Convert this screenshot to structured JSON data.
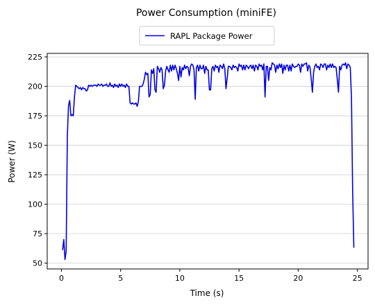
{
  "chart_data": {
    "type": "line",
    "title": "Power Consumption (miniFE)",
    "xlabel": "Time (s)",
    "ylabel": "Power (W)",
    "xlim": [
      -1.2,
      25.9
    ],
    "ylim": [
      45,
      228
    ],
    "xticks": [
      0,
      5,
      10,
      15,
      20,
      25
    ],
    "yticks": [
      50,
      75,
      100,
      125,
      150,
      175,
      200,
      225
    ],
    "grid": "horizontal",
    "legend_position": "top-center",
    "series": [
      {
        "name": "RAPL Package Power",
        "color": "#0000dd",
        "x": [
          0.1,
          0.2,
          0.3,
          0.4,
          0.5,
          0.6,
          0.7,
          0.8,
          0.9,
          1.0,
          1.1,
          1.2,
          1.3,
          1.4,
          1.5,
          1.6,
          1.7,
          1.8,
          1.9,
          2.0,
          2.1,
          2.2,
          2.3,
          2.4,
          2.5,
          2.6,
          2.7,
          2.8,
          2.9,
          3.0,
          3.1,
          3.2,
          3.3,
          3.4,
          3.5,
          3.6,
          3.7,
          3.8,
          3.9,
          4.0,
          4.1,
          4.2,
          4.3,
          4.4,
          4.5,
          4.6,
          4.7,
          4.8,
          4.9,
          5.0,
          5.1,
          5.2,
          5.3,
          5.4,
          5.5,
          5.6,
          5.7,
          5.8,
          5.9,
          6.0,
          6.1,
          6.2,
          6.3,
          6.4,
          6.5,
          6.6,
          6.7,
          6.8,
          6.9,
          7.0,
          7.1,
          7.2,
          7.3,
          7.4,
          7.5,
          7.6,
          7.7,
          7.8,
          7.9,
          8.0,
          8.1,
          8.2,
          8.3,
          8.4,
          8.5,
          8.6,
          8.7,
          8.8,
          8.9,
          9.0,
          9.1,
          9.2,
          9.3,
          9.4,
          9.5,
          9.6,
          9.7,
          9.8,
          9.9,
          10.0,
          10.1,
          10.2,
          10.3,
          10.4,
          10.5,
          10.6,
          10.7,
          10.8,
          10.9,
          11.0,
          11.1,
          11.2,
          11.3,
          11.4,
          11.5,
          11.6,
          11.7,
          11.8,
          11.9,
          12.0,
          12.1,
          12.2,
          12.3,
          12.4,
          12.5,
          12.6,
          12.7,
          12.8,
          12.9,
          13.0,
          13.1,
          13.2,
          13.3,
          13.4,
          13.5,
          13.6,
          13.7,
          13.8,
          13.9,
          14.0,
          14.1,
          14.2,
          14.3,
          14.4,
          14.5,
          14.6,
          14.7,
          14.8,
          14.9,
          15.0,
          15.1,
          15.2,
          15.3,
          15.4,
          15.5,
          15.6,
          15.7,
          15.8,
          15.9,
          16.0,
          16.1,
          16.2,
          16.3,
          16.4,
          16.5,
          16.6,
          16.7,
          16.8,
          16.9,
          17.0,
          17.1,
          17.2,
          17.3,
          17.4,
          17.5,
          17.6,
          17.7,
          17.8,
          17.9,
          18.0,
          18.1,
          18.2,
          18.3,
          18.4,
          18.5,
          18.6,
          18.7,
          18.8,
          18.9,
          19.0,
          19.1,
          19.2,
          19.3,
          19.4,
          19.5,
          19.6,
          19.7,
          19.8,
          19.9,
          20.0,
          20.1,
          20.2,
          20.3,
          20.4,
          20.5,
          20.6,
          20.7,
          20.8,
          20.9,
          21.0,
          21.1,
          21.2,
          21.3,
          21.4,
          21.5,
          21.6,
          21.7,
          21.8,
          21.9,
          22.0,
          22.1,
          22.2,
          22.3,
          22.4,
          22.5,
          22.6,
          22.7,
          22.8,
          22.9,
          23.0,
          23.1,
          23.2,
          23.3,
          23.4,
          23.5,
          23.6,
          23.7,
          23.8,
          23.9,
          24.0,
          24.1,
          24.2,
          24.3,
          24.4,
          24.5,
          24.6,
          24.7
        ],
        "y": [
          61,
          70,
          53,
          60,
          158,
          184,
          188,
          175,
          176,
          175,
          191,
          201,
          200,
          199,
          198,
          199,
          197,
          199,
          198,
          198,
          196,
          197,
          201,
          200,
          201,
          200,
          201,
          201,
          201,
          200,
          202,
          201,
          201,
          202,
          200,
          201,
          201,
          202,
          200,
          200,
          203,
          200,
          201,
          199,
          202,
          200,
          201,
          199,
          202,
          200,
          202,
          200,
          201,
          199,
          202,
          200,
          200,
          186,
          185,
          186,
          185,
          185,
          186,
          183,
          187,
          200,
          200,
          200,
          202,
          206,
          212,
          210,
          211,
          191,
          193,
          214,
          211,
          215,
          197,
          195,
          217,
          215,
          212,
          216,
          214,
          198,
          201,
          213,
          217,
          214,
          212,
          218,
          213,
          218,
          214,
          218,
          215,
          211,
          205,
          217,
          208,
          216,
          214,
          218,
          215,
          217,
          216,
          209,
          217,
          219,
          218,
          214,
          189,
          216,
          218,
          213,
          218,
          215,
          215,
          218,
          211,
          217,
          214,
          214,
          197,
          197,
          215,
          217,
          213,
          218,
          216,
          217,
          212,
          218,
          217,
          215,
          219,
          215,
          198,
          207,
          217,
          217,
          216,
          214,
          218,
          216,
          217,
          216,
          213,
          219,
          217,
          218,
          214,
          218,
          214,
          218,
          217,
          215,
          217,
          218,
          215,
          218,
          213,
          218,
          217,
          214,
          219,
          217,
          218,
          214,
          219,
          191,
          217,
          217,
          205,
          216,
          214,
          220,
          219,
          218,
          212,
          218,
          215,
          219,
          216,
          219,
          211,
          218,
          214,
          218,
          218,
          213,
          218,
          213,
          219,
          217,
          216,
          217,
          217,
          219,
          218,
          212,
          219,
          217,
          219,
          219,
          220,
          213,
          218,
          216,
          206,
          195,
          212,
          217,
          219,
          216,
          217,
          214,
          219,
          218,
          216,
          219,
          219,
          214,
          218,
          216,
          219,
          216,
          219,
          216,
          217,
          216,
          206,
          195,
          217,
          214,
          218,
          219,
          218,
          220,
          215,
          219,
          218,
          216,
          190,
          110,
          63
        ]
      }
    ]
  }
}
